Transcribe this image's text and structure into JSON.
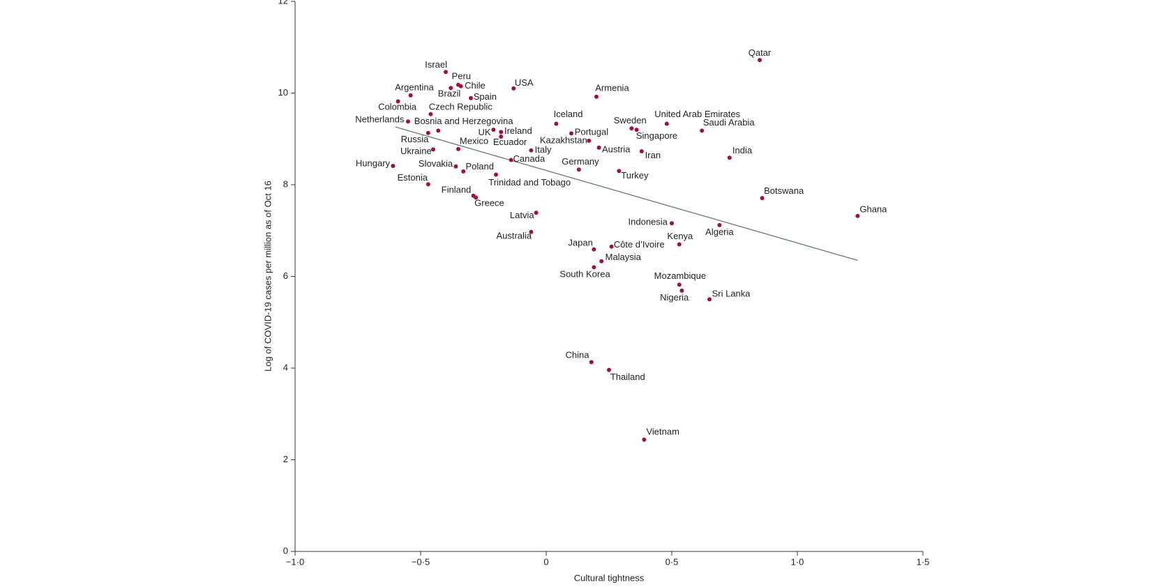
{
  "chart_data": {
    "type": "scatter",
    "x_label": "Cultural tightness",
    "y_label": "Log of COVID-19 cases per million as of Oct 16",
    "color": "#a0103a",
    "trend": {
      "x": [
        -0.6,
        1.24
      ],
      "y": [
        9.26,
        6.35
      ],
      "color": "#5f7d78"
    },
    "xlim": [
      -1.0,
      1.5
    ],
    "xticks": [
      {
        "value": -1.0,
        "label": "−1·0"
      },
      {
        "value": -0.5,
        "label": "−0·5"
      },
      0,
      {
        "value": 0.5,
        "label": "0·5"
      },
      {
        "value": 1.0,
        "label": "1·0"
      },
      {
        "value": 1.5,
        "label": "1·5"
      }
    ],
    "ylim": [
      0,
      12
    ],
    "yticks": [
      0,
      2,
      4,
      6,
      8,
      10,
      12
    ],
    "points": [
      {
        "label": "Israel",
        "x": -0.4,
        "y": 10.46
      },
      {
        "label": "Brazil",
        "x": -0.38,
        "y": 10.11
      },
      {
        "label": "Peru",
        "x": -0.35,
        "y": 10.18
      },
      {
        "label": "Chile",
        "x": -0.34,
        "y": 10.15
      },
      {
        "label": "Argentina",
        "x": -0.54,
        "y": 9.95
      },
      {
        "label": "Spain",
        "x": -0.3,
        "y": 9.89
      },
      {
        "label": "USA",
        "x": -0.13,
        "y": 10.1
      },
      {
        "label": "Colombia",
        "x": -0.59,
        "y": 9.82
      },
      {
        "label": "Czech Republic",
        "x": -0.46,
        "y": 9.54
      },
      {
        "label": "Netherlands",
        "x": -0.55,
        "y": 9.38
      },
      {
        "label": "Bosnia and Herzegovina",
        "x": -0.43,
        "y": 9.18
      },
      {
        "label": "Russia",
        "x": -0.47,
        "y": 9.13
      },
      {
        "label": "UK",
        "x": -0.21,
        "y": 9.2
      },
      {
        "label": "Ireland",
        "x": -0.18,
        "y": 9.15
      },
      {
        "label": "Ecuador",
        "x": -0.18,
        "y": 9.05
      },
      {
        "label": "Mexico",
        "x": -0.35,
        "y": 8.78
      },
      {
        "label": "Ukraine",
        "x": -0.45,
        "y": 8.77
      },
      {
        "label": "Italy",
        "x": -0.06,
        "y": 8.75
      },
      {
        "label": "Canada",
        "x": -0.14,
        "y": 8.54
      },
      {
        "label": "Slovakia",
        "x": -0.36,
        "y": 8.4
      },
      {
        "label": "Poland",
        "x": -0.33,
        "y": 8.29
      },
      {
        "label": "Hungary",
        "x": -0.61,
        "y": 8.41
      },
      {
        "label": "Trinidad and Tobago",
        "x": -0.2,
        "y": 8.22
      },
      {
        "label": "Estonia",
        "x": -0.47,
        "y": 8.01
      },
      {
        "label": "Finland",
        "x": -0.29,
        "y": 7.76
      },
      {
        "label": "Greece",
        "x": -0.28,
        "y": 7.72
      },
      {
        "label": "Latvia",
        "x": -0.04,
        "y": 7.39
      },
      {
        "label": "Australia",
        "x": -0.06,
        "y": 6.97
      },
      {
        "label": "Iceland",
        "x": 0.04,
        "y": 9.33
      },
      {
        "label": "Portugal",
        "x": 0.1,
        "y": 9.12
      },
      {
        "label": "Kazakhstan",
        "x": 0.17,
        "y": 8.96
      },
      {
        "label": "Armenia",
        "x": 0.2,
        "y": 9.92
      },
      {
        "label": "Austria",
        "x": 0.21,
        "y": 8.81
      },
      {
        "label": "Germany",
        "x": 0.13,
        "y": 8.33
      },
      {
        "label": "Sweden",
        "x": 0.34,
        "y": 9.23
      },
      {
        "label": "Singapore",
        "x": 0.36,
        "y": 9.2
      },
      {
        "label": "Iran",
        "x": 0.38,
        "y": 8.73
      },
      {
        "label": "Turkey",
        "x": 0.29,
        "y": 8.3
      },
      {
        "label": "United Arab Emirates",
        "x": 0.48,
        "y": 9.33
      },
      {
        "label": "Saudi Arabia",
        "x": 0.62,
        "y": 9.18
      },
      {
        "label": "India",
        "x": 0.73,
        "y": 8.59
      },
      {
        "label": "Qatar",
        "x": 0.85,
        "y": 10.72
      },
      {
        "label": "Botswana",
        "x": 0.86,
        "y": 7.71
      },
      {
        "label": "Ghana",
        "x": 1.24,
        "y": 7.32
      },
      {
        "label": "Indonesia",
        "x": 0.5,
        "y": 7.16
      },
      {
        "label": "Algeria",
        "x": 0.69,
        "y": 7.12
      },
      {
        "label": "Kenya",
        "x": 0.53,
        "y": 6.7
      },
      {
        "label": "Japan",
        "x": 0.19,
        "y": 6.59
      },
      {
        "label": "Côte d’Ivoire",
        "x": 0.26,
        "y": 6.65
      },
      {
        "label": "Malaysia",
        "x": 0.22,
        "y": 6.33
      },
      {
        "label": "South Korea",
        "x": 0.19,
        "y": 6.2
      },
      {
        "label": "Mozambique",
        "x": 0.53,
        "y": 5.82
      },
      {
        "label": "Nigeria",
        "x": 0.54,
        "y": 5.69
      },
      {
        "label": "Sri Lanka",
        "x": 0.65,
        "y": 5.5
      },
      {
        "label": "China",
        "x": 0.18,
        "y": 4.13
      },
      {
        "label": "Thailand",
        "x": 0.25,
        "y": 3.96
      },
      {
        "label": "Vietnam",
        "x": 0.39,
        "y": 2.44
      }
    ]
  }
}
